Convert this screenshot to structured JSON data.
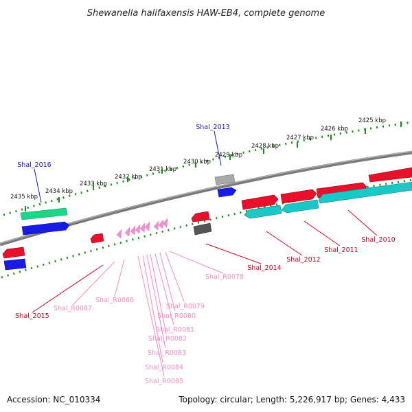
{
  "title": "Shewanella halifaxensis HAW-EB4, complete genome",
  "accession": "Accession: NC_010334",
  "topology": "Topology: circular; Length: 5,226,917 bp; Genes: 4,433",
  "colors": {
    "backbone": "#7a7a7a",
    "tick": "#1a8a1a",
    "red": "#e8102b",
    "blue": "#1a1ae6",
    "teal": "#1ac8c8",
    "green": "#19d989",
    "gray": "#9a9a9a",
    "darkgray": "#555555",
    "pink": "#f38fd0",
    "label_blue": "#1515b0",
    "label_red": "#cc0022",
    "label_pink": "#f08ac4"
  },
  "ticks": [
    {
      "text": "2425 kbp"
    },
    {
      "text": "2426 kbp"
    },
    {
      "text": "2427 kbp"
    },
    {
      "text": "2428 kbp"
    },
    {
      "text": "2429 kbp"
    },
    {
      "text": "2430 kbp"
    },
    {
      "text": "2431 kbp"
    },
    {
      "text": "2432 kbp"
    },
    {
      "text": "2433 kbp"
    },
    {
      "text": "2434 kbp"
    },
    {
      "text": "2435 kbp"
    }
  ],
  "genes": [
    {
      "name": "Shal_2016",
      "strand": "forward"
    },
    {
      "name": "Shal_2013",
      "strand": "forward"
    },
    {
      "name": "Shal_2015",
      "strand": "reverse"
    },
    {
      "name": "Shal_2014",
      "strand": "reverse"
    },
    {
      "name": "Shal_2012",
      "strand": "reverse"
    },
    {
      "name": "Shal_2011",
      "strand": "reverse"
    },
    {
      "name": "Shal_2010",
      "strand": "reverse"
    },
    {
      "name": "Shal_R0087",
      "strand": "reverse"
    },
    {
      "name": "Shal_R0086",
      "strand": "reverse"
    },
    {
      "name": "Shal_R0085",
      "strand": "reverse"
    },
    {
      "name": "Shal_R0084",
      "strand": "reverse"
    },
    {
      "name": "Shal_R0083",
      "strand": "reverse"
    },
    {
      "name": "Shal_R0082",
      "strand": "reverse"
    },
    {
      "name": "Shal_R0081",
      "strand": "reverse"
    },
    {
      "name": "Shal_R0080",
      "strand": "reverse"
    },
    {
      "name": "Shal_R0079",
      "strand": "reverse"
    },
    {
      "name": "Shal_R0078",
      "strand": "reverse"
    }
  ]
}
